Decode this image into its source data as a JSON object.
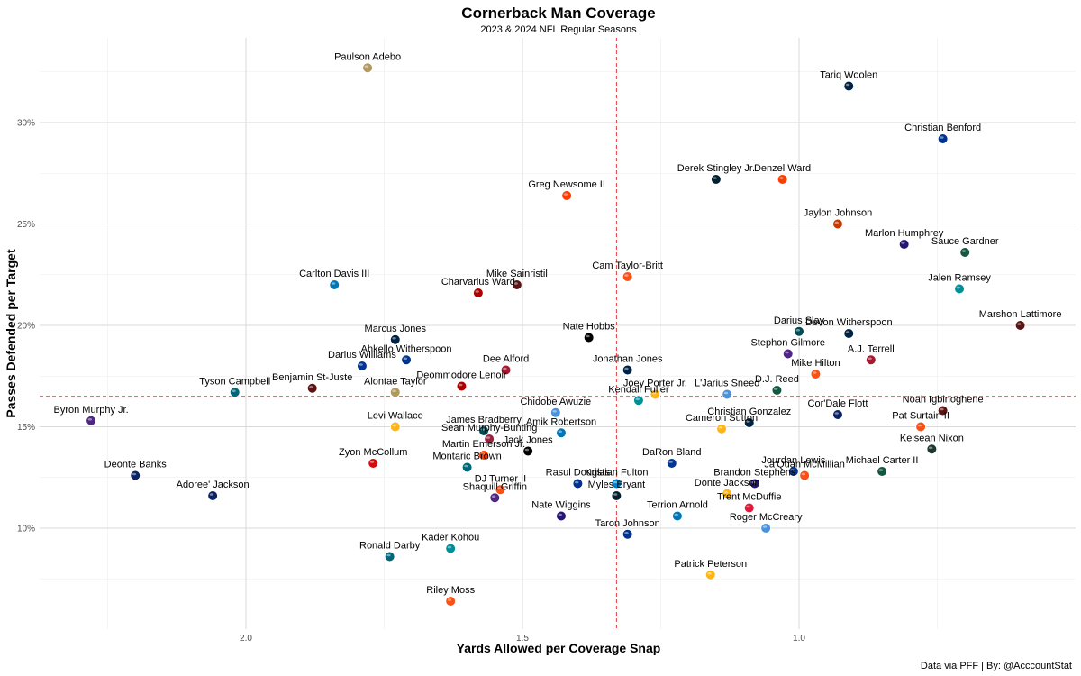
{
  "chart_data": {
    "type": "scatter",
    "title": "Cornerback Man Coverage",
    "subtitle": "2023 & 2024 NFL Regular Seasons",
    "xlabel": "Yards Allowed per Coverage Snap",
    "ylabel": "Passes Defended per Target",
    "caption": "Data via PFF | By: @AcccountStat",
    "x_reversed": true,
    "xlim": [
      0.75,
      2.25
    ],
    "ylim": [
      0.055,
      0.335
    ],
    "x_ticks": [
      2.0,
      1.5,
      1.0
    ],
    "x_tick_labels": [
      "2.0",
      "1.5",
      "1.0"
    ],
    "y_ticks": [
      0.1,
      0.15,
      0.2,
      0.25,
      0.3
    ],
    "y_tick_labels": [
      "10%",
      "15%",
      "20%",
      "25%",
      "30%"
    ],
    "grid": true,
    "ref_lines": {
      "x": 1.33,
      "y": 0.165,
      "color": "#e8383b"
    },
    "points": [
      {
        "name": "Paulson Adebo",
        "x": 1.78,
        "y": 0.327,
        "team": "NO",
        "color": "#b3995d"
      },
      {
        "name": "Tariq Woolen",
        "x": 0.91,
        "y": 0.318,
        "team": "SEA",
        "color": "#002244"
      },
      {
        "name": "Christian Benford",
        "x": 0.74,
        "y": 0.292,
        "team": "BUF",
        "color": "#00338d"
      },
      {
        "name": "Derek Stingley Jr.",
        "x": 1.15,
        "y": 0.272,
        "team": "HOU",
        "color": "#03202f"
      },
      {
        "name": "Denzel Ward",
        "x": 1.03,
        "y": 0.272,
        "team": "CLE",
        "color": "#ff3c00"
      },
      {
        "name": "Greg Newsome II",
        "x": 1.42,
        "y": 0.264,
        "team": "CLE",
        "color": "#ff3c00"
      },
      {
        "name": "Jaylon Johnson",
        "x": 0.93,
        "y": 0.25,
        "team": "CHI",
        "color": "#c83803"
      },
      {
        "name": "Marlon Humphrey",
        "x": 0.81,
        "y": 0.24,
        "team": "BAL",
        "color": "#241773"
      },
      {
        "name": "Sauce Gardner",
        "x": 0.7,
        "y": 0.236,
        "team": "NYJ",
        "color": "#125740"
      },
      {
        "name": "Cam Taylor-Britt",
        "x": 1.31,
        "y": 0.224,
        "team": "CIN",
        "color": "#fb4f14"
      },
      {
        "name": "Carlton Davis III",
        "x": 1.84,
        "y": 0.22,
        "team": "DET",
        "color": "#0076b6"
      },
      {
        "name": "Mike Sainristil",
        "x": 1.51,
        "y": 0.22,
        "team": "WAS",
        "color": "#5a1414"
      },
      {
        "name": "Charvarius Ward",
        "x": 1.58,
        "y": 0.216,
        "team": "SF",
        "color": "#aa0000"
      },
      {
        "name": "Jalen Ramsey",
        "x": 0.71,
        "y": 0.218,
        "team": "MIA",
        "color": "#008e97"
      },
      {
        "name": "Marshon Lattimore",
        "x": 0.6,
        "y": 0.2,
        "team": "WAS",
        "color": "#5a1414"
      },
      {
        "name": "Darius Slay",
        "x": 1.0,
        "y": 0.197,
        "team": "PHI",
        "color": "#004c54"
      },
      {
        "name": "Marcus Jones",
        "x": 1.73,
        "y": 0.193,
        "team": "NE",
        "color": "#002244"
      },
      {
        "name": "Nate Hobbs",
        "x": 1.38,
        "y": 0.194,
        "team": "LV",
        "color": "#000000"
      },
      {
        "name": "Devon Witherspoon",
        "x": 0.91,
        "y": 0.196,
        "team": "SEA",
        "color": "#002244"
      },
      {
        "name": "Stephon Gilmore",
        "x": 1.02,
        "y": 0.186,
        "team": "MIN",
        "color": "#4f2683"
      },
      {
        "name": "Ahkello Witherspoon",
        "x": 1.71,
        "y": 0.183,
        "team": "LAR",
        "color": "#003594"
      },
      {
        "name": "Darius Williams",
        "x": 1.79,
        "y": 0.18,
        "team": "LAR",
        "color": "#003594"
      },
      {
        "name": "Dee Alford",
        "x": 1.53,
        "y": 0.178,
        "team": "ATL",
        "color": "#a71930"
      },
      {
        "name": "Jonathan Jones",
        "x": 1.31,
        "y": 0.178,
        "team": "NE",
        "color": "#002244"
      },
      {
        "name": "A.J. Terrell",
        "x": 0.87,
        "y": 0.183,
        "team": "ATL",
        "color": "#a71930"
      },
      {
        "name": "Mike Hilton",
        "x": 0.97,
        "y": 0.176,
        "team": "CIN",
        "color": "#fb4f14"
      },
      {
        "name": "Deommodore Lenoir",
        "x": 1.61,
        "y": 0.17,
        "team": "SF",
        "color": "#aa0000"
      },
      {
        "name": "D.J. Reed",
        "x": 1.04,
        "y": 0.168,
        "team": "NYJ",
        "color": "#125740"
      },
      {
        "name": "Tyson Campbell",
        "x": 2.02,
        "y": 0.167,
        "team": "JAX",
        "color": "#006778"
      },
      {
        "name": "Benjamin St-Juste",
        "x": 1.88,
        "y": 0.169,
        "team": "WAS",
        "color": "#5a1414"
      },
      {
        "name": "Alontae Taylor",
        "x": 1.73,
        "y": 0.167,
        "team": "NO",
        "color": "#b3995d"
      },
      {
        "name": "Joey Porter Jr.",
        "x": 1.26,
        "y": 0.166,
        "team": "PIT",
        "color": "#ffb612"
      },
      {
        "name": "L'Jarius Sneed",
        "x": 1.13,
        "y": 0.166,
        "team": "TEN",
        "color": "#4b92db"
      },
      {
        "name": "Kendall Fuller",
        "x": 1.29,
        "y": 0.163,
        "team": "MIA",
        "color": "#008e97"
      },
      {
        "name": "Cor'Dale Flott",
        "x": 0.93,
        "y": 0.156,
        "team": "NYG",
        "color": "#0b2265"
      },
      {
        "name": "Noah Igbinoghene",
        "x": 0.74,
        "y": 0.158,
        "team": "WAS",
        "color": "#5a1414"
      },
      {
        "name": "Byron Murphy Jr.",
        "x": 2.28,
        "y": 0.153,
        "team": "MIN",
        "color": "#4f2683"
      },
      {
        "name": "Chidobe Awuzie",
        "x": 1.44,
        "y": 0.157,
        "team": "TEN",
        "color": "#4b92db"
      },
      {
        "name": "Christian Gonzalez",
        "x": 1.09,
        "y": 0.152,
        "team": "NE",
        "color": "#002244"
      },
      {
        "name": "Levi Wallace",
        "x": 1.73,
        "y": 0.15,
        "team": "PIT",
        "color": "#ffb612"
      },
      {
        "name": "James Bradberry",
        "x": 1.57,
        "y": 0.148,
        "team": "PHI",
        "color": "#004c54"
      },
      {
        "name": "Amik Robertson",
        "x": 1.43,
        "y": 0.147,
        "team": "DET",
        "color": "#0076b6"
      },
      {
        "name": "Cameron Sutton",
        "x": 1.14,
        "y": 0.149,
        "team": "PIT",
        "color": "#ffb612"
      },
      {
        "name": "Pat Surtain II",
        "x": 0.78,
        "y": 0.15,
        "team": "DEN",
        "color": "#fb4f14"
      },
      {
        "name": "Sean Murphy-Bunting",
        "x": 1.56,
        "y": 0.144,
        "team": "ARI",
        "color": "#97233f"
      },
      {
        "name": "Keisean Nixon",
        "x": 0.76,
        "y": 0.139,
        "team": "GB",
        "color": "#203731"
      },
      {
        "name": "Zyon McCollum",
        "x": 1.77,
        "y": 0.132,
        "team": "TB",
        "color": "#d50a0a"
      },
      {
        "name": "Martin Emerson Jr.",
        "x": 1.57,
        "y": 0.136,
        "team": "CLE",
        "color": "#ff3c00"
      },
      {
        "name": "Jack Jones",
        "x": 1.49,
        "y": 0.138,
        "team": "LV",
        "color": "#000000"
      },
      {
        "name": "DaRon Bland",
        "x": 1.23,
        "y": 0.132,
        "team": "DAL",
        "color": "#003594"
      },
      {
        "name": "Montaric Brown",
        "x": 1.6,
        "y": 0.13,
        "team": "JAX",
        "color": "#006778"
      },
      {
        "name": "Jourdan Lewis",
        "x": 1.01,
        "y": 0.128,
        "team": "DAL",
        "color": "#003594"
      },
      {
        "name": "Michael Carter II",
        "x": 0.85,
        "y": 0.128,
        "team": "NYJ",
        "color": "#125740"
      },
      {
        "name": "Ja'Quan McMillian",
        "x": 0.99,
        "y": 0.126,
        "team": "DEN",
        "color": "#fb4f14"
      },
      {
        "name": "Deonte Banks",
        "x": 2.2,
        "y": 0.126,
        "team": "NYG",
        "color": "#0b2265"
      },
      {
        "name": "Rasul Douglas",
        "x": 1.4,
        "y": 0.122,
        "team": "BUF",
        "color": "#00338d"
      },
      {
        "name": "Kristian Fulton",
        "x": 1.33,
        "y": 0.122,
        "team": "LAC",
        "color": "#0080c6"
      },
      {
        "name": "Brandon Stephens",
        "x": 1.08,
        "y": 0.122,
        "team": "BAL",
        "color": "#241773"
      },
      {
        "name": "DJ Turner II",
        "x": 1.54,
        "y": 0.119,
        "team": "CIN",
        "color": "#fb4f14"
      },
      {
        "name": "Adoree' Jackson",
        "x": 2.06,
        "y": 0.116,
        "team": "NYG",
        "color": "#0b2265"
      },
      {
        "name": "Myles Bryant",
        "x": 1.33,
        "y": 0.116,
        "team": "HOU",
        "color": "#03202f"
      },
      {
        "name": "Shaquill Griffin",
        "x": 1.55,
        "y": 0.115,
        "team": "MIN",
        "color": "#4f2683"
      },
      {
        "name": "Donte Jackson",
        "x": 1.13,
        "y": 0.117,
        "team": "PIT",
        "color": "#ffb612"
      },
      {
        "name": "Trent McDuffie",
        "x": 1.09,
        "y": 0.11,
        "team": "KC",
        "color": "#e31837"
      },
      {
        "name": "Nate Wiggins",
        "x": 1.43,
        "y": 0.106,
        "team": "BAL",
        "color": "#241773"
      },
      {
        "name": "Terrion Arnold",
        "x": 1.22,
        "y": 0.106,
        "team": "DET",
        "color": "#0076b6"
      },
      {
        "name": "Roger McCreary",
        "x": 1.06,
        "y": 0.1,
        "team": "TEN",
        "color": "#4b92db"
      },
      {
        "name": "Taron Johnson",
        "x": 1.31,
        "y": 0.097,
        "team": "BUF",
        "color": "#00338d"
      },
      {
        "name": "Kader Kohou",
        "x": 1.63,
        "y": 0.09,
        "team": "MIA",
        "color": "#008e97"
      },
      {
        "name": "Ronald Darby",
        "x": 1.74,
        "y": 0.086,
        "team": "JAX",
        "color": "#006778"
      },
      {
        "name": "Patrick Peterson",
        "x": 1.16,
        "y": 0.077,
        "team": "PIT",
        "color": "#ffb612"
      },
      {
        "name": "Riley Moss",
        "x": 1.63,
        "y": 0.064,
        "team": "DEN",
        "color": "#fb4f14"
      }
    ]
  }
}
